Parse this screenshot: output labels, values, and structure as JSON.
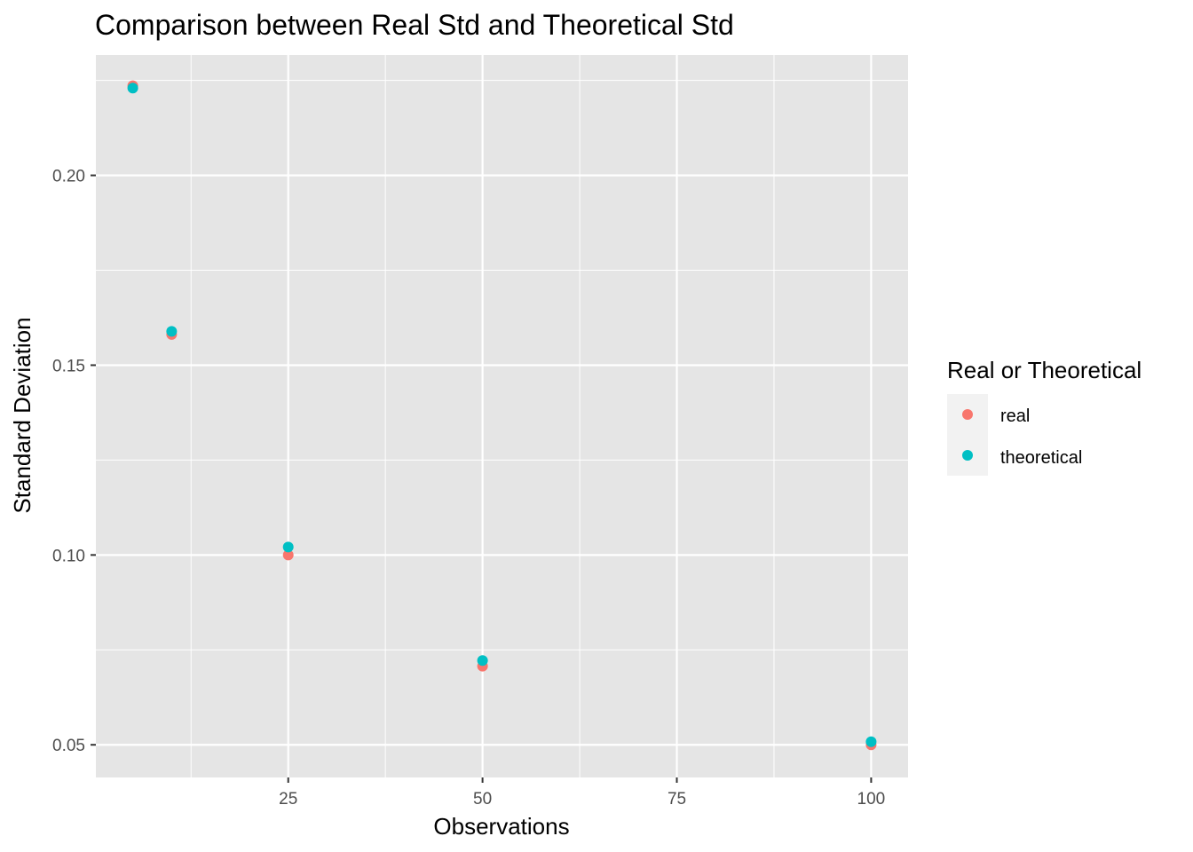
{
  "chart_data": {
    "type": "scatter",
    "title": "Comparison between Real Std and Theoretical Std",
    "xlabel": "Observations",
    "ylabel": "Standard Deviation",
    "xlim": [
      0.25,
      104.75
    ],
    "ylim": [
      0.0414,
      0.2317
    ],
    "x_ticks": [
      25,
      50,
      75,
      100
    ],
    "x_tick_labels": [
      "25",
      "50",
      "75",
      "100"
    ],
    "y_ticks": [
      0.05,
      0.1,
      0.15,
      0.2
    ],
    "y_tick_labels": [
      "0.05",
      "0.10",
      "0.15",
      "0.20"
    ],
    "grid": true,
    "legend": {
      "title": "Real or Theoretical",
      "position": "right"
    },
    "series": [
      {
        "name": "real",
        "color": "#F8766D",
        "points": [
          {
            "x": 5,
            "y": 0.2236
          },
          {
            "x": 10,
            "y": 0.1581
          },
          {
            "x": 25,
            "y": 0.1
          },
          {
            "x": 50,
            "y": 0.0707
          },
          {
            "x": 100,
            "y": 0.05
          }
        ]
      },
      {
        "name": "theoretical",
        "color": "#00BFC4",
        "points": [
          {
            "x": 5,
            "y": 0.223
          },
          {
            "x": 10,
            "y": 0.1589
          },
          {
            "x": 25,
            "y": 0.1021
          },
          {
            "x": 50,
            "y": 0.0722
          },
          {
            "x": 100,
            "y": 0.0508
          }
        ]
      }
    ]
  }
}
